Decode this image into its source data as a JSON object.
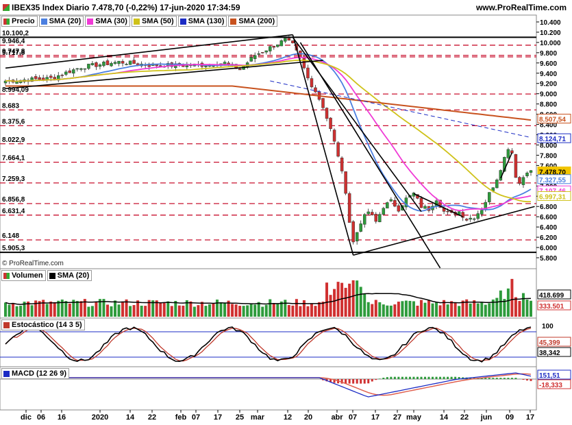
{
  "header": {
    "title": "IBEX35 Index Diario 7.478,70 (-0,22%) 17-jun-2020 17:34:59",
    "site": "www.ProRealTime.com",
    "copyright": "© ProRealTime.com"
  },
  "legend_price": [
    {
      "label": "Precio",
      "color": "#e8e8e8"
    },
    {
      "label": "SMA (20)",
      "color": "#4b7fe0"
    },
    {
      "label": "SMA (30)",
      "color": "#f03ad6"
    },
    {
      "label": "SMA (50)",
      "color": "#cfc21a"
    },
    {
      "label": "SMA (130)",
      "color": "#1b2bc4"
    },
    {
      "label": "SMA (200)",
      "color": "#c8521e"
    }
  ],
  "legend_volume": [
    {
      "label": "Volumen",
      "color": "#3a9a3a"
    },
    {
      "label": "SMA (20)",
      "color": "#000000"
    }
  ],
  "legend_stoch": [
    {
      "label": "Estocástico (14 3 5)",
      "color": "#c0392b"
    }
  ],
  "legend_macd": [
    {
      "label": "MACD (12 26 9)",
      "color": "#1b2bc4"
    }
  ],
  "chart_data": {
    "type": "candlestick",
    "x_labels": [
      "dic",
      "06",
      "16",
      "2020",
      "14",
      "22",
      "feb",
      "07",
      "17",
      "25",
      "mar",
      "12",
      "20",
      "abr",
      "07",
      "17",
      "27",
      "may",
      "14",
      "22",
      "jun",
      "09",
      "17"
    ],
    "price_axis": {
      "ylim": [
        5700,
        10450
      ],
      "ticks": [
        "10.400",
        "10.200",
        "10.000",
        "9.800",
        "9.600",
        "9.400",
        "9.200",
        "9.000",
        "8.800",
        "8.600",
        "8.400",
        "8.200",
        "8.000",
        "7.800",
        "7.600",
        "7.400",
        "7.200",
        "7.000",
        "6.800",
        "6.600",
        "6.400",
        "6.200",
        "6.000",
        "5.800"
      ]
    },
    "levels": [
      {
        "value": 10100.2,
        "label": "10.100,2",
        "style": "solid"
      },
      {
        "value": 9946.4,
        "label": "9.946,4",
        "style": "dashed"
      },
      {
        "value": 9747.8,
        "label": "9.747,8",
        "style": "dashed"
      },
      {
        "value": 9717.8,
        "label": "9.717,8",
        "style": "dashed"
      },
      {
        "value": 8994.09,
        "label": "8.994,09",
        "style": "dashed"
      },
      {
        "value": 8683,
        "label": "8.683",
        "style": "dashed"
      },
      {
        "value": 8375.6,
        "label": "8.375,6",
        "style": "dashed"
      },
      {
        "value": 8022.9,
        "label": "8.022,9",
        "style": "dashed"
      },
      {
        "value": 7664.1,
        "label": "7.664,1",
        "style": "dashed"
      },
      {
        "value": 7259.3,
        "label": "7.259,3",
        "style": "dashed"
      },
      {
        "value": 6856.8,
        "label": "6.856,8",
        "style": "dashed"
      },
      {
        "value": 6631.4,
        "label": "6.631,4",
        "style": "dashed"
      },
      {
        "value": 6148,
        "label": "6.148",
        "style": "dashed"
      },
      {
        "value": 5905.3,
        "label": "5.905,3",
        "style": "solid"
      }
    ],
    "badges": [
      {
        "value": 8507.54,
        "label": "8.507,54",
        "color": "#c8521e"
      },
      {
        "value": 8124.71,
        "label": "8.124,71",
        "color": "#1b2bc4"
      },
      {
        "value": 7478.7,
        "label": "7.478,70",
        "color": "#f2c500"
      },
      {
        "value": 7327.55,
        "label": "7.327,55",
        "color": "#4b7fe0"
      },
      {
        "value": 7107.46,
        "label": "7.107,46",
        "color": "#f03ad6"
      },
      {
        "value": 6997.31,
        "label": "6.997,31",
        "color": "#cfc21a"
      }
    ],
    "volume": {
      "values": [
        418699,
        333501
      ],
      "labels": [
        "418.699",
        "333.501"
      ]
    },
    "stochastic": {
      "ticks": [
        "100"
      ],
      "values": [
        "45,399",
        "38,342"
      ]
    },
    "macd": {
      "values": [
        "151,51",
        "-18,333"
      ]
    }
  }
}
